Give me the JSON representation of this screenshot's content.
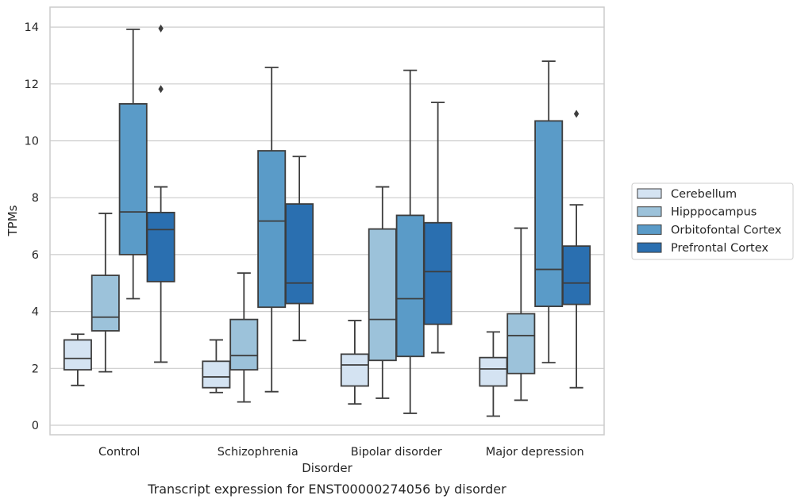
{
  "caption": "Transcript expression for ENST00000274056 by disorder",
  "chart_data": {
    "type": "boxplot",
    "title": "",
    "xlabel": "Disorder",
    "ylabel": "TPMs",
    "ylim": [
      -0.3,
      14.6
    ],
    "yticks": [
      0,
      2,
      4,
      6,
      8,
      10,
      12,
      14
    ],
    "grid": "horizontal",
    "legend_position": "right",
    "categories": [
      "Control",
      "Schizophrenia",
      "Bipolar disorder",
      "Major depression"
    ],
    "series": [
      {
        "name": "Cerebellum",
        "color": "#d4e3f2",
        "boxes": [
          {
            "whislo": 1.4,
            "q1": 1.95,
            "med": 2.35,
            "q3": 3.0,
            "whishi": 3.2,
            "fliers": []
          },
          {
            "whislo": 1.15,
            "q1": 1.32,
            "med": 1.7,
            "q3": 2.25,
            "whishi": 3.0,
            "fliers": []
          },
          {
            "whislo": 0.75,
            "q1": 1.38,
            "med": 2.12,
            "q3": 2.5,
            "whishi": 3.68,
            "fliers": []
          },
          {
            "whislo": 0.32,
            "q1": 1.38,
            "med": 1.98,
            "q3": 2.38,
            "whishi": 3.28,
            "fliers": []
          }
        ]
      },
      {
        "name": "Hipppocampus",
        "color": "#9cc2da",
        "boxes": [
          {
            "whislo": 1.88,
            "q1": 3.32,
            "med": 3.8,
            "q3": 5.27,
            "whishi": 7.45,
            "fliers": []
          },
          {
            "whislo": 0.82,
            "q1": 1.95,
            "med": 2.45,
            "q3": 3.72,
            "whishi": 5.35,
            "fliers": []
          },
          {
            "whislo": 0.95,
            "q1": 2.28,
            "med": 3.72,
            "q3": 6.9,
            "whishi": 8.38,
            "fliers": []
          },
          {
            "whislo": 0.88,
            "q1": 1.82,
            "med": 3.15,
            "q3": 3.92,
            "whishi": 6.93,
            "fliers": []
          }
        ]
      },
      {
        "name": "Orbitofontal Cortex",
        "color": "#5a9bc8",
        "boxes": [
          {
            "whislo": 4.45,
            "q1": 6.0,
            "med": 7.5,
            "q3": 11.3,
            "whishi": 13.92,
            "fliers": []
          },
          {
            "whislo": 1.18,
            "q1": 4.15,
            "med": 7.18,
            "q3": 9.65,
            "whishi": 12.58,
            "fliers": []
          },
          {
            "whislo": 0.42,
            "q1": 2.42,
            "med": 4.45,
            "q3": 7.38,
            "whishi": 12.48,
            "fliers": []
          },
          {
            "whislo": 2.2,
            "q1": 4.18,
            "med": 5.48,
            "q3": 10.7,
            "whishi": 12.8,
            "fliers": []
          }
        ]
      },
      {
        "name": "Prefrontal Cortex",
        "color": "#2a6fb0",
        "boxes": [
          {
            "whislo": 2.22,
            "q1": 5.05,
            "med": 6.88,
            "q3": 7.48,
            "whishi": 8.38,
            "fliers": [
              11.82,
              13.95
            ]
          },
          {
            "whislo": 2.98,
            "q1": 4.28,
            "med": 5.0,
            "q3": 7.78,
            "whishi": 9.45,
            "fliers": []
          },
          {
            "whislo": 2.55,
            "q1": 3.55,
            "med": 5.4,
            "q3": 7.12,
            "whishi": 11.35,
            "fliers": []
          },
          {
            "whislo": 1.32,
            "q1": 4.25,
            "med": 5.0,
            "q3": 6.3,
            "whishi": 7.75,
            "fliers": [
              10.95
            ]
          }
        ]
      }
    ]
  }
}
